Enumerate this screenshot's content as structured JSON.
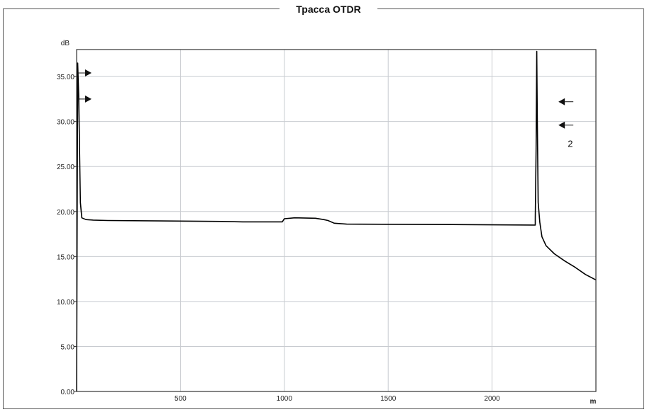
{
  "panel": {
    "title": "Трасса OTDR"
  },
  "colors": {
    "trace": "#000000",
    "grid": "#c8cbd0",
    "frame": "#444444",
    "background": "#ffffff"
  },
  "chart_data": {
    "type": "line",
    "title": "Трасса OTDR",
    "ylabel": "dB",
    "xlabel": "m",
    "xlim": [
      0,
      2500
    ],
    "ylim": [
      0,
      38
    ],
    "x_ticks": [
      500,
      1000,
      1500,
      2000
    ],
    "y_ticks": [
      0,
      5,
      10,
      15,
      20,
      25,
      30,
      35
    ],
    "y_tick_labels": [
      "0.00",
      "5.00",
      "10.00",
      "15.00",
      "20.00",
      "25.00",
      "30.00",
      "35.00"
    ],
    "grid": true,
    "series": [
      {
        "points": [
          [
            0,
            0
          ],
          [
            5,
            36.5
          ],
          [
            10,
            33
          ],
          [
            14,
            27
          ],
          [
            18,
            21
          ],
          [
            25,
            19.3
          ],
          [
            45,
            19.1
          ],
          [
            80,
            19.05
          ],
          [
            150,
            19.0
          ],
          [
            400,
            18.95
          ],
          [
            700,
            18.9
          ],
          [
            800,
            18.85
          ],
          [
            990,
            18.85
          ],
          [
            1000,
            19.2
          ],
          [
            1050,
            19.3
          ],
          [
            1150,
            19.25
          ],
          [
            1190,
            19.1
          ],
          [
            1210,
            19.0
          ],
          [
            1240,
            18.7
          ],
          [
            1300,
            18.6
          ],
          [
            1800,
            18.55
          ],
          [
            2200,
            18.5
          ],
          [
            2208,
            18.5
          ],
          [
            2208,
            19.2
          ],
          [
            2212,
            27
          ],
          [
            2215,
            37.8
          ],
          [
            2218,
            30
          ],
          [
            2222,
            21
          ],
          [
            2230,
            18.8
          ],
          [
            2240,
            17.2
          ],
          [
            2260,
            16.2
          ],
          [
            2300,
            15.3
          ],
          [
            2350,
            14.5
          ],
          [
            2400,
            13.8
          ],
          [
            2450,
            13.0
          ],
          [
            2500,
            12.4
          ]
        ]
      }
    ],
    "markers": [
      {
        "side": "left",
        "direction": "right",
        "y": 35.4,
        "x": 30
      },
      {
        "side": "left",
        "direction": "right",
        "y": 32.5,
        "x": 30
      },
      {
        "side": "right",
        "direction": "left",
        "y": 32.2,
        "x": 2200
      },
      {
        "side": "right",
        "direction": "left",
        "y": 29.6,
        "x": 2200
      }
    ],
    "annotations": [
      {
        "text": "2",
        "x": 2180,
        "y": 27.5
      }
    ]
  }
}
